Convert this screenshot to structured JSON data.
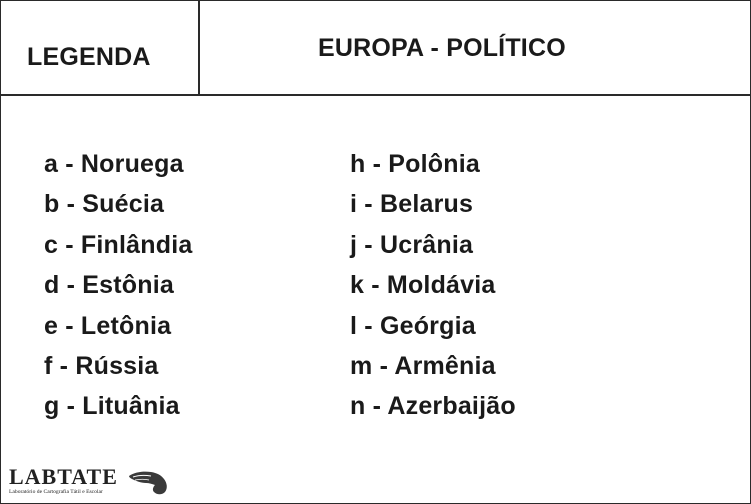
{
  "header": {
    "legend_label": "LEGENDA",
    "title": "EUROPA - POLÍTICO"
  },
  "legend": {
    "left": [
      "a - Noruega",
      "b - Suécia",
      "c - Finlândia",
      "d - Estônia",
      "e - Letônia",
      "f - Rússia",
      "g - Lituânia"
    ],
    "right": [
      "h - Polônia",
      "i - Belarus",
      "j - Ucrânia",
      "k - Moldávia",
      "l - Geórgia",
      "m - Armênia",
      "n - Azerbaijão"
    ]
  },
  "logo": {
    "name": "LABTATE",
    "subtitle": "Laboratório de Cartografia Tátil e Escolar",
    "icon": "hand-icon"
  }
}
